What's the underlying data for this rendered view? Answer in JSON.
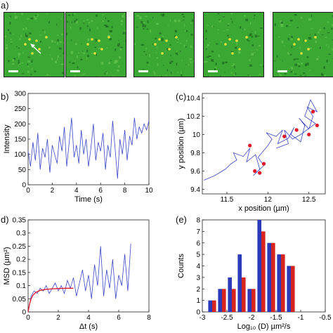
{
  "panel_labels": {
    "a": "a)",
    "b": "b)",
    "c": "(c)",
    "d": "d)",
    "e": "(e)"
  },
  "frames": [
    {
      "arrow": true
    },
    {
      "arrow": false
    },
    {
      "arrow": false
    },
    {
      "arrow": false
    },
    {
      "arrow": false
    }
  ],
  "colors": {
    "microscopy_green": "#3aa832",
    "trace_blue": "#3a46c8",
    "fit_red": "#e0182a",
    "bar_blue": "#2a3ab8",
    "bar_red": "#d8241e"
  },
  "chart_data": [
    {
      "id": "b",
      "type": "line",
      "xlabel": "Time (s)",
      "ylabel": "Intensity",
      "xlim": [
        0,
        10
      ],
      "ylim": [
        0,
        300
      ],
      "xticks": [
        "0",
        "2",
        "4",
        "6",
        "8",
        "10"
      ],
      "yticks": [
        "0",
        "50",
        "100",
        "150",
        "200",
        "250",
        "300"
      ],
      "x": [
        0,
        0.2,
        0.4,
        0.6,
        0.8,
        1.0,
        1.2,
        1.4,
        1.6,
        1.8,
        2.0,
        2.2,
        2.4,
        2.6,
        2.8,
        3.0,
        3.2,
        3.4,
        3.6,
        3.8,
        4.0,
        4.2,
        4.4,
        4.6,
        4.8,
        5.0,
        5.2,
        5.4,
        5.6,
        5.8,
        6.0,
        6.2,
        6.4,
        6.6,
        6.8,
        7.0,
        7.2,
        7.4,
        7.6,
        7.8,
        8.0,
        8.2,
        8.4,
        8.6,
        8.8,
        9.0,
        9.2,
        9.4,
        9.6,
        9.8,
        10.0
      ],
      "y": [
        110,
        60,
        140,
        80,
        170,
        50,
        120,
        90,
        150,
        40,
        130,
        100,
        70,
        160,
        110,
        190,
        60,
        140,
        220,
        90,
        130,
        70,
        180,
        100,
        150,
        60,
        120,
        200,
        80,
        140,
        110,
        170,
        50,
        130,
        90,
        210,
        120,
        20,
        150,
        100,
        180,
        80,
        160,
        130,
        220,
        150,
        190,
        170,
        200,
        180,
        210
      ]
    },
    {
      "id": "c",
      "type": "line",
      "xlabel": "x position (µm)",
      "ylabel": "y position (µm)",
      "xlim": [
        11.2,
        12.7
      ],
      "ylim": [
        9.35,
        10.45
      ],
      "xticks": [
        "11.5",
        "12",
        "12.5"
      ],
      "yticks": [
        "9.4",
        "9.6",
        "9.8",
        "10",
        "10.2",
        "10.4"
      ],
      "x": [
        11.22,
        11.35,
        11.48,
        11.55,
        11.62,
        11.58,
        11.7,
        11.78,
        11.74,
        11.85,
        11.9,
        11.82,
        11.95,
        11.88,
        12.0,
        12.05,
        11.98,
        12.1,
        12.18,
        12.12,
        12.25,
        12.32,
        12.28,
        12.4,
        12.45,
        12.38,
        12.5,
        12.55,
        12.48,
        12.6,
        12.52,
        12.45,
        12.58,
        12.4,
        12.3,
        12.2,
        12.25,
        12.1
      ],
      "y": [
        9.5,
        9.55,
        9.62,
        9.68,
        9.72,
        9.8,
        9.76,
        9.85,
        9.7,
        9.78,
        9.62,
        9.55,
        9.66,
        9.75,
        9.88,
        9.95,
        10.02,
        9.98,
        10.05,
        9.9,
        9.96,
        10.08,
        10.0,
        9.92,
        10.1,
        10.18,
        10.06,
        10.2,
        10.3,
        10.25,
        10.38,
        10.2,
        10.12,
        10.0,
        9.95,
        10.05,
        9.9,
        9.85
      ],
      "markers": [
        [
          11.78,
          9.88
        ],
        [
          11.84,
          9.6
        ],
        [
          11.9,
          9.58
        ],
        [
          11.95,
          9.68
        ],
        [
          12.2,
          9.98
        ],
        [
          12.35,
          10.05
        ],
        [
          12.5,
          10.0
        ],
        [
          12.55,
          10.25
        ],
        [
          12.6,
          10.1
        ]
      ]
    },
    {
      "id": "d",
      "type": "line",
      "xlabel": "Δt (s)",
      "ylabel": "MSD (µm²)",
      "xlim": [
        0,
        8
      ],
      "ylim": [
        0,
        0.35
      ],
      "xticks": [
        "0",
        "2",
        "4",
        "6",
        "8"
      ],
      "yticks": [
        "0",
        "0.05",
        "0.1",
        "0.15",
        "0.2",
        "0.25",
        "0.3",
        "0.35"
      ],
      "x": [
        0,
        0.2,
        0.4,
        0.6,
        0.8,
        1.0,
        1.2,
        1.4,
        1.6,
        1.8,
        2.0,
        2.2,
        2.4,
        2.6,
        2.8,
        3.0,
        3.2,
        3.4,
        3.6,
        3.8,
        4.0,
        4.2,
        4.4,
        4.6,
        4.8,
        5.0,
        5.2,
        5.4,
        5.6,
        5.8,
        6.0,
        6.2,
        6.4,
        6.6,
        6.8
      ],
      "y": [
        0,
        0.06,
        0.08,
        0.07,
        0.09,
        0.08,
        0.1,
        0.07,
        0.09,
        0.11,
        0.08,
        0.1,
        0.07,
        0.12,
        0.09,
        0.13,
        0.06,
        0.11,
        0.16,
        0.08,
        0.14,
        0.05,
        0.18,
        0.1,
        0.25,
        0.06,
        0.16,
        0.09,
        0.2,
        0.05,
        0.14,
        0.1,
        0.22,
        0.08,
        0.26
      ],
      "fit": {
        "name": "",
        "x": [
          0,
          0.1,
          0.2,
          0.3,
          0.5,
          0.8,
          1.2,
          1.6,
          2.0,
          2.5,
          3.0
        ],
        "y": [
          0,
          0.03,
          0.05,
          0.062,
          0.074,
          0.082,
          0.086,
          0.088,
          0.089,
          0.09,
          0.09
        ]
      }
    },
    {
      "id": "e",
      "type": "bar",
      "xlabel": "Log₁₀ (D) µm²/s",
      "ylabel": "Counts",
      "xlim": [
        -3,
        -0.5
      ],
      "ylim": [
        0,
        8
      ],
      "xticks": [
        "-3",
        "-2.5",
        "-2",
        "-1.5",
        "-1",
        "-0.5"
      ],
      "yticks": [
        "0",
        "1",
        "2",
        "3",
        "4",
        "5",
        "6",
        "7",
        "8"
      ],
      "categories": [
        -2.8,
        -2.6,
        -2.4,
        -2.2,
        -2.0,
        -1.8,
        -1.6,
        -1.4,
        -1.2
      ],
      "series": [
        {
          "color": "#2a3ab8",
          "values": [
            1,
            2,
            3,
            5,
            2,
            8,
            6,
            5,
            4
          ]
        },
        {
          "color": "#d8241e",
          "values": [
            1,
            2,
            2,
            3,
            2,
            7,
            6,
            5,
            4
          ]
        }
      ]
    }
  ]
}
